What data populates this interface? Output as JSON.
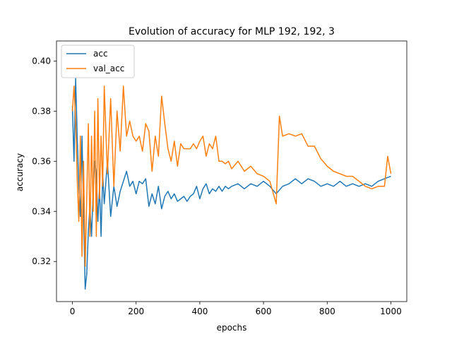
{
  "chart_data": {
    "type": "line",
    "title": "Evolution of accuracy for MLP 192, 192, 3",
    "xlabel": "epochs",
    "ylabel": "accuracy",
    "xlim": [
      -50,
      1050
    ],
    "ylim": [
      0.304,
      0.408
    ],
    "xticks": [
      0,
      200,
      400,
      600,
      800,
      1000
    ],
    "yticks": [
      0.32,
      0.34,
      0.36,
      0.38,
      0.4
    ],
    "ytick_labels": [
      "0.32",
      "0.34",
      "0.36",
      "0.38",
      "0.40"
    ],
    "grid": false,
    "legend": {
      "placement": "top-left",
      "entries": [
        "acc",
        "val_acc"
      ]
    },
    "series": [
      {
        "name": "acc",
        "color": "#1f77b4",
        "x": [
          0,
          5,
          10,
          15,
          20,
          25,
          30,
          35,
          40,
          45,
          50,
          55,
          60,
          65,
          70,
          75,
          80,
          85,
          90,
          95,
          100,
          110,
          120,
          130,
          140,
          150,
          160,
          170,
          180,
          190,
          200,
          210,
          220,
          230,
          240,
          250,
          260,
          270,
          280,
          290,
          300,
          310,
          320,
          330,
          340,
          350,
          360,
          370,
          380,
          390,
          400,
          410,
          420,
          430,
          440,
          450,
          460,
          470,
          480,
          490,
          500,
          520,
          540,
          560,
          580,
          600,
          620,
          640,
          660,
          680,
          700,
          720,
          740,
          760,
          780,
          800,
          820,
          840,
          860,
          880,
          900,
          920,
          940,
          960,
          980,
          1000
        ],
        "y": [
          0.382,
          0.36,
          0.393,
          0.37,
          0.35,
          0.338,
          0.37,
          0.34,
          0.309,
          0.315,
          0.332,
          0.342,
          0.33,
          0.348,
          0.36,
          0.355,
          0.336,
          0.35,
          0.33,
          0.355,
          0.343,
          0.36,
          0.338,
          0.35,
          0.342,
          0.348,
          0.352,
          0.356,
          0.35,
          0.352,
          0.347,
          0.352,
          0.351,
          0.353,
          0.342,
          0.347,
          0.343,
          0.35,
          0.341,
          0.346,
          0.348,
          0.345,
          0.347,
          0.344,
          0.345,
          0.346,
          0.344,
          0.346,
          0.347,
          0.35,
          0.345,
          0.349,
          0.351,
          0.347,
          0.349,
          0.348,
          0.35,
          0.348,
          0.35,
          0.349,
          0.35,
          0.351,
          0.349,
          0.351,
          0.35,
          0.352,
          0.35,
          0.347,
          0.35,
          0.351,
          0.353,
          0.351,
          0.353,
          0.352,
          0.35,
          0.351,
          0.35,
          0.352,
          0.35,
          0.351,
          0.35,
          0.351,
          0.35,
          0.352,
          0.353,
          0.354
        ]
      },
      {
        "name": "val_acc",
        "color": "#ff7f0e",
        "x": [
          0,
          5,
          10,
          15,
          20,
          25,
          30,
          35,
          40,
          45,
          50,
          55,
          60,
          65,
          70,
          75,
          80,
          85,
          90,
          95,
          100,
          110,
          120,
          130,
          140,
          150,
          160,
          170,
          180,
          190,
          200,
          210,
          220,
          230,
          240,
          250,
          260,
          270,
          280,
          290,
          300,
          310,
          320,
          330,
          340,
          350,
          360,
          370,
          380,
          390,
          400,
          410,
          420,
          430,
          440,
          450,
          460,
          470,
          480,
          490,
          500,
          520,
          540,
          560,
          580,
          600,
          620,
          640,
          650,
          660,
          680,
          700,
          720,
          740,
          760,
          780,
          800,
          820,
          840,
          860,
          880,
          900,
          920,
          940,
          960,
          980,
          990,
          1000
        ],
        "y": [
          0.38,
          0.39,
          0.376,
          0.353,
          0.336,
          0.37,
          0.322,
          0.36,
          0.318,
          0.345,
          0.375,
          0.33,
          0.37,
          0.34,
          0.38,
          0.33,
          0.385,
          0.345,
          0.37,
          0.35,
          0.39,
          0.355,
          0.385,
          0.35,
          0.38,
          0.364,
          0.39,
          0.37,
          0.376,
          0.37,
          0.368,
          0.37,
          0.364,
          0.375,
          0.372,
          0.356,
          0.37,
          0.362,
          0.386,
          0.375,
          0.365,
          0.36,
          0.368,
          0.358,
          0.367,
          0.365,
          0.365,
          0.365,
          0.367,
          0.365,
          0.368,
          0.37,
          0.362,
          0.367,
          0.365,
          0.37,
          0.36,
          0.36,
          0.359,
          0.36,
          0.357,
          0.36,
          0.356,
          0.358,
          0.355,
          0.354,
          0.352,
          0.343,
          0.378,
          0.37,
          0.371,
          0.37,
          0.371,
          0.366,
          0.366,
          0.361,
          0.358,
          0.356,
          0.355,
          0.354,
          0.354,
          0.352,
          0.35,
          0.349,
          0.35,
          0.35,
          0.362,
          0.355
        ]
      }
    ]
  }
}
